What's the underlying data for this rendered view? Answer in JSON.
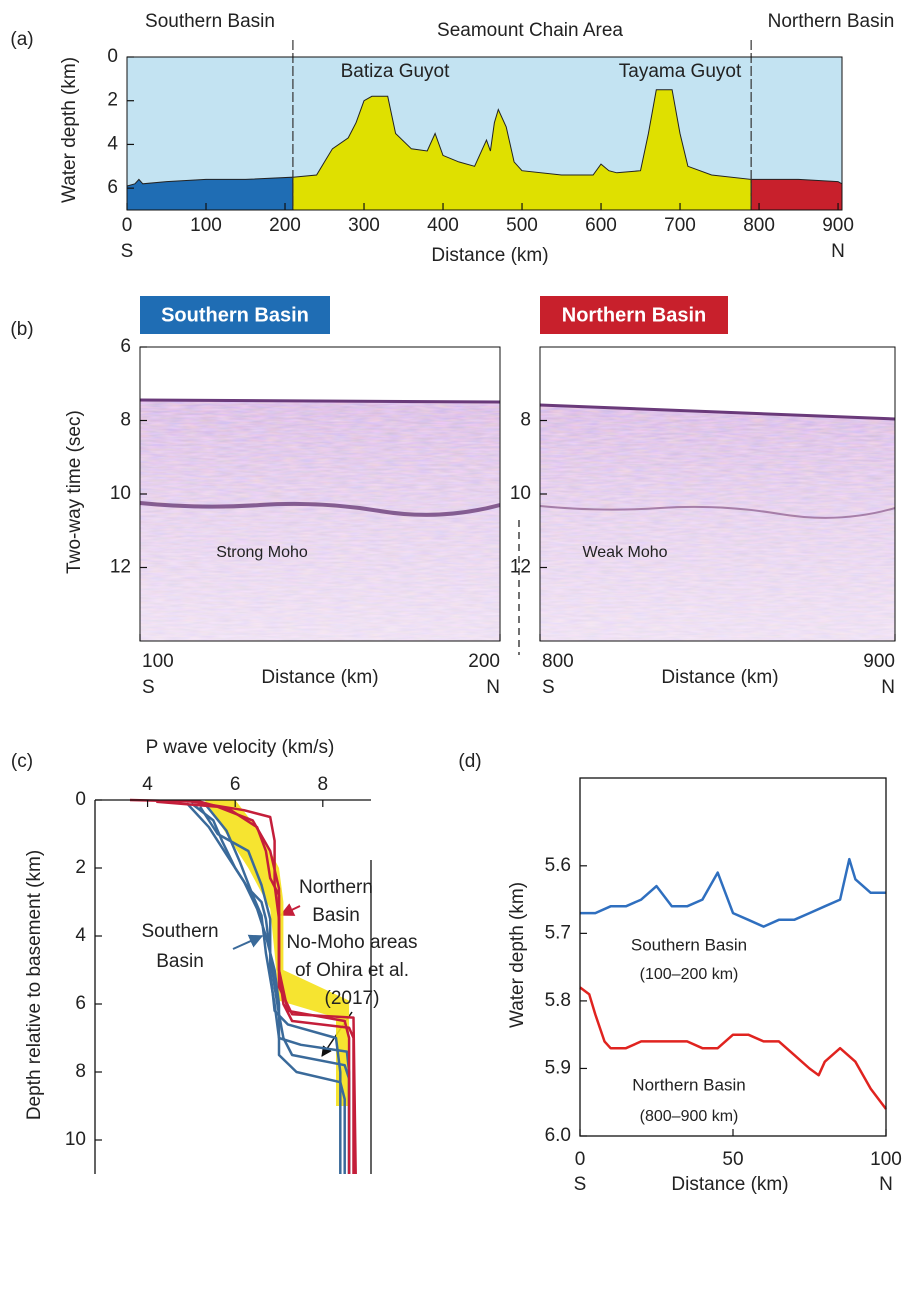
{
  "chart_data": [
    {
      "type": "area",
      "label": "(a)",
      "xlabel": "Distance (km)",
      "ylabel": "Water depth (km)",
      "x_end_labels": [
        "S",
        "N"
      ],
      "xlim": [
        0,
        905
      ],
      "ylim": [
        0,
        7
      ],
      "y_inverted": true,
      "xticks": [
        0,
        100,
        200,
        300,
        400,
        500,
        600,
        700,
        800,
        900
      ],
      "yticks": [
        0,
        2,
        4,
        6
      ],
      "background": "#c3e3f2",
      "annotations": [
        "Batiza Guyot",
        "Tayama Guyot"
      ],
      "series": [
        {
          "name": "Southern Basin",
          "color": "#1f6db4",
          "x": [
            0,
            10,
            15,
            20,
            50,
            100,
            150,
            210
          ],
          "values": [
            5.9,
            5.8,
            5.6,
            5.8,
            5.7,
            5.6,
            5.6,
            5.5
          ]
        },
        {
          "name": "Seamount Chain Area",
          "color": "#dfe000",
          "x": [
            210,
            240,
            250,
            260,
            280,
            290,
            300,
            310,
            330,
            340,
            360,
            380,
            390,
            400,
            420,
            440,
            450,
            455,
            460,
            465,
            470,
            480,
            490,
            500,
            550,
            590,
            600,
            610,
            620,
            650,
            660,
            670,
            690,
            700,
            710,
            740,
            790
          ],
          "values": [
            5.5,
            5.4,
            4.8,
            4.2,
            3.7,
            3.0,
            2.0,
            1.8,
            1.8,
            3.5,
            4.2,
            4.3,
            3.5,
            4.5,
            4.8,
            5.0,
            4.2,
            3.8,
            4.3,
            3.0,
            2.4,
            3.2,
            4.8,
            5.2,
            5.4,
            5.4,
            4.9,
            5.2,
            5.3,
            5.2,
            3.5,
            1.5,
            1.5,
            3.5,
            5.0,
            5.4,
            5.6
          ]
        },
        {
          "name": "Northern Basin",
          "color": "#c8202c",
          "x": [
            790,
            850,
            900,
            905
          ],
          "values": [
            5.6,
            5.6,
            5.7,
            5.8
          ]
        }
      ]
    },
    {
      "type": "image",
      "title": "Southern Basin",
      "title_color": "#1f6db4",
      "label": "(b)",
      "ylabel": "Two-way time (sec)",
      "xlabel": "Distance (km)",
      "x_end_labels": [
        "S",
        "N"
      ],
      "xlim": [
        100,
        200
      ],
      "xticks": [
        100,
        200
      ],
      "ylim": [
        6,
        14
      ],
      "y_inverted": true,
      "yticks": [
        6,
        8,
        10,
        12
      ],
      "annotations": [
        "Strong Moho"
      ]
    },
    {
      "type": "image",
      "title": "Northern Basin",
      "title_color": "#c8202c",
      "xlabel": "Distance (km)",
      "x_end_labels": [
        "S",
        "N"
      ],
      "xlim": [
        800,
        900
      ],
      "xticks": [
        800,
        900
      ],
      "ylim": [
        6,
        14
      ],
      "y_inverted": true,
      "yticks": [
        8,
        10,
        12
      ],
      "annotations": [
        "Weak Moho"
      ]
    },
    {
      "type": "line",
      "label": "(c)",
      "xlabel": "P wave velocity (km/s)",
      "ylabel": "Depth relative to basement (km)",
      "x_axis_top": true,
      "xlim": [
        2.8,
        9.1
      ],
      "xticks": [
        4,
        6,
        8
      ],
      "ylim": [
        0,
        11
      ],
      "y_inverted": true,
      "yticks": [
        0,
        2,
        4,
        6,
        8,
        10
      ],
      "band": {
        "color": "#f5e11a",
        "x": [
          5.3,
          6.0,
          6.6,
          7.0,
          7.1,
          7.1,
          8.6,
          8.6,
          8.3,
          8.3,
          7.0,
          6.9,
          6.8,
          6.3,
          5.8
        ],
        "values": [
          0,
          0,
          1,
          2,
          3,
          5.0,
          5.9,
          9.0,
          9.0,
          6.4,
          5.9,
          4.5,
          3.2,
          2.0,
          1.0
        ]
      },
      "annotations": [
        "Northern",
        "Basin",
        "Southern",
        "Basin",
        "No-Moho areas",
        "of Ohira et al.",
        "(2017)"
      ],
      "series": [
        {
          "color": "#3a6a9a",
          "x": [
            5.0,
            5.5,
            5.7,
            6.0,
            6.3,
            6.6,
            6.7,
            6.8,
            6.9,
            7.0,
            7.1,
            7.3,
            8.5,
            8.6,
            8.6
          ],
          "values": [
            0.1,
            0.6,
            1.2,
            2.0,
            2.6,
            3.0,
            3.5,
            4.5,
            5.5,
            6.3,
            7.0,
            7.5,
            7.8,
            8.2,
            11
          ]
        },
        {
          "color": "#3a6a9a",
          "x": [
            4.9,
            5.4,
            5.8,
            6.2,
            6.5,
            6.7,
            6.9,
            7.0,
            7.0,
            7.4,
            8.4,
            8.5,
            8.5
          ],
          "values": [
            0.1,
            0.8,
            1.6,
            2.4,
            3.2,
            4.0,
            5.0,
            6.0,
            7.5,
            8.0,
            8.3,
            8.8,
            11
          ]
        },
        {
          "color": "#3a6a9a",
          "x": [
            5.2,
            5.6,
            6.3,
            6.6,
            6.8,
            6.8,
            6.9,
            7.2,
            8.3,
            8.4,
            8.4
          ],
          "values": [
            0.2,
            1.0,
            1.5,
            2.5,
            3.5,
            5,
            6.2,
            6.6,
            7.0,
            8,
            11
          ]
        },
        {
          "color": "#3a6a9a",
          "x": [
            5.3,
            5.8,
            6.1,
            6.4,
            6.6,
            6.7,
            6.9,
            7.0,
            7.5,
            8.55,
            8.6,
            8.6
          ],
          "values": [
            0.1,
            0.9,
            1.8,
            2.8,
            3.4,
            4.5,
            6.0,
            7.0,
            7.2,
            7.4,
            8,
            11
          ]
        },
        {
          "color": "#c41e3a",
          "x": [
            3.6,
            5.2,
            5.9,
            6.5,
            6.7,
            6.8,
            7.0,
            7.0,
            7.1,
            7.3,
            8.6,
            8.7,
            8.7
          ],
          "values": [
            0,
            0.05,
            0.3,
            0.8,
            1.5,
            2.3,
            2.8,
            5.0,
            6.0,
            6.5,
            6.7,
            7.0,
            11
          ]
        },
        {
          "color": "#c41e3a",
          "x": [
            5.0,
            6.2,
            6.8,
            6.9,
            6.9,
            7.0,
            7.0,
            7.2,
            8.5,
            8.6,
            8.6
          ],
          "values": [
            0.05,
            0.3,
            0.5,
            1.2,
            2.5,
            3.5,
            5,
            6.2,
            6.5,
            7,
            11
          ]
        },
        {
          "color": "#c41e3a",
          "x": [
            4.2,
            5.6,
            6.4,
            6.8,
            7.0,
            7.0,
            7.3,
            8.7,
            8.75
          ],
          "values": [
            0.05,
            0.2,
            0.6,
            1.5,
            2.6,
            5.5,
            6.3,
            6.4,
            11
          ]
        }
      ]
    },
    {
      "type": "line",
      "label": "(d)",
      "xlabel": "Distance (km)",
      "ylabel": "Water depth (km)",
      "x_end_labels": [
        "S",
        "N"
      ],
      "xlim": [
        0,
        100
      ],
      "xticks": [
        0,
        50,
        100
      ],
      "ylim": [
        5.47,
        6.0
      ],
      "y_inverted": true,
      "yticks": [
        5.6,
        5.7,
        5.8,
        5.9,
        {
          "value": 6,
          "label": "6.0"
        }
      ],
      "annotations": [
        "(100–200 km)",
        "(800–900 km)"
      ],
      "series": [
        {
          "name": "Southern Basin",
          "color": "#2f6fbf",
          "x": [
            0,
            5,
            10,
            15,
            20,
            25,
            30,
            35,
            40,
            45,
            50,
            55,
            60,
            65,
            70,
            75,
            80,
            85,
            88,
            90,
            95,
            100
          ],
          "values": [
            5.67,
            5.67,
            5.66,
            5.66,
            5.65,
            5.63,
            5.66,
            5.66,
            5.65,
            5.61,
            5.67,
            5.68,
            5.69,
            5.68,
            5.68,
            5.67,
            5.66,
            5.65,
            5.59,
            5.62,
            5.64,
            5.64
          ]
        },
        {
          "name": "Northern Basin",
          "color": "#e0231f",
          "x": [
            0,
            3,
            5,
            8,
            10,
            15,
            20,
            25,
            30,
            35,
            40,
            45,
            50,
            55,
            60,
            65,
            70,
            75,
            78,
            80,
            85,
            90,
            95,
            100
          ],
          "values": [
            5.78,
            5.79,
            5.82,
            5.86,
            5.87,
            5.87,
            5.86,
            5.86,
            5.86,
            5.86,
            5.87,
            5.87,
            5.85,
            5.85,
            5.86,
            5.86,
            5.88,
            5.9,
            5.91,
            5.89,
            5.87,
            5.89,
            5.93,
            5.96
          ]
        }
      ]
    }
  ]
}
